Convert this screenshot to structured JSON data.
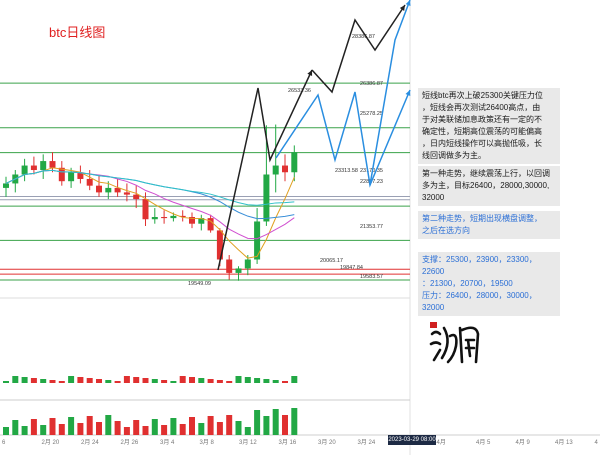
{
  "chart_title": "btc日线图",
  "notes": {
    "analysis": [
      "短线btc再次上破25300关键压力位",
      "，短线会再次测试26400高点，由",
      "于对美联储加息政策还有一定的不",
      "确定性，短期高位震荡的可能偏高",
      "，日内短线操作可以高抛低吸，长",
      "线回调做多为主。"
    ],
    "scenario1": [
      "第一种走势，继续震荡上行，以回调",
      "多为主，目标26400，28000,30000,",
      "32000"
    ],
    "scenario2": [
      "第二种走势，短期出现横盘调整，",
      "之后在选方向"
    ],
    "levels": [
      "支撑：25300，23900，23300，22600",
      "：21300，20700，19500",
      "压力：26400，28000，30000，32000"
    ]
  },
  "colors": {
    "up": "#22a845",
    "down": "#e03030",
    "ma_yellow": "#e0a020",
    "ma_blue": "#3a8fd8",
    "ma_pink": "#d04fd0",
    "ma_cyan": "#30c0c8",
    "arrow_black": "#222222",
    "arrow_blue": "#2a8ee0",
    "level_green": "#3aa24a",
    "level_red": "#e03030"
  },
  "signature_icon": "calligraphy-signature-icon",
  "cursor_date": "2023-03-29 08:00",
  "chart_data": {
    "type": "candlestick",
    "x_ticks": [
      "6",
      "2月 20",
      "2月 24",
      "2月 26",
      "3月 4",
      "3月 8",
      "3月 12",
      "3月 16",
      "3月 20",
      "3月 24",
      "",
      "4月",
      "4月 5",
      "4月 9",
      "4月 13",
      "4"
    ],
    "price_labels": [
      "28386.87",
      "26533.36",
      "26386.87",
      "25278.25",
      "23313.58",
      "23170.35",
      "22887.23",
      "21353.77",
      "20065.17",
      "19847.84",
      "19583.57",
      "19549.09"
    ],
    "horizontal_levels": [
      {
        "value": 28386.87,
        "color": "green"
      },
      {
        "value": 26386.87,
        "color": "green"
      },
      {
        "value": 25278.25,
        "color": "green"
      },
      {
        "value": 23313.58,
        "color": "gray"
      },
      {
        "value": 23170.35,
        "color": "gray"
      },
      {
        "value": 22887.23,
        "color": "green"
      },
      {
        "value": 21353.77,
        "color": "green"
      },
      {
        "value": 20065.17,
        "color": "red"
      },
      {
        "value": 19847.84,
        "color": "red"
      },
      {
        "value": 19583.57,
        "color": "green"
      }
    ],
    "candles": [
      {
        "o": 23700,
        "h": 24200,
        "l": 23300,
        "c": 23900
      },
      {
        "o": 23900,
        "h": 24500,
        "l": 23500,
        "c": 24300
      },
      {
        "o": 24300,
        "h": 25000,
        "l": 24000,
        "c": 24700
      },
      {
        "o": 24700,
        "h": 25100,
        "l": 24300,
        "c": 24500
      },
      {
        "o": 24500,
        "h": 25200,
        "l": 24100,
        "c": 24900
      },
      {
        "o": 24900,
        "h": 25300,
        "l": 24400,
        "c": 24600
      },
      {
        "o": 24600,
        "h": 24900,
        "l": 23800,
        "c": 24000
      },
      {
        "o": 24000,
        "h": 24600,
        "l": 23700,
        "c": 24400
      },
      {
        "o": 24400,
        "h": 24700,
        "l": 23900,
        "c": 24100
      },
      {
        "o": 24100,
        "h": 24500,
        "l": 23600,
        "c": 23800
      },
      {
        "o": 23800,
        "h": 24300,
        "l": 23300,
        "c": 23500
      },
      {
        "o": 23500,
        "h": 24000,
        "l": 23200,
        "c": 23700
      },
      {
        "o": 23700,
        "h": 24100,
        "l": 23300,
        "c": 23500
      },
      {
        "o": 23500,
        "h": 23900,
        "l": 23100,
        "c": 23400
      },
      {
        "o": 23400,
        "h": 23800,
        "l": 22800,
        "c": 23200
      },
      {
        "o": 23200,
        "h": 23500,
        "l": 22000,
        "c": 22300
      },
      {
        "o": 22300,
        "h": 22800,
        "l": 22100,
        "c": 22400
      },
      {
        "o": 22400,
        "h": 22700,
        "l": 22100,
        "c": 22350
      },
      {
        "o": 22350,
        "h": 22600,
        "l": 22200,
        "c": 22450
      },
      {
        "o": 22450,
        "h": 22700,
        "l": 22200,
        "c": 22400
      },
      {
        "o": 22400,
        "h": 22600,
        "l": 21900,
        "c": 22100
      },
      {
        "o": 22100,
        "h": 22500,
        "l": 21800,
        "c": 22350
      },
      {
        "o": 22350,
        "h": 22500,
        "l": 21700,
        "c": 21800
      },
      {
        "o": 21800,
        "h": 21900,
        "l": 20200,
        "c": 20500
      },
      {
        "o": 20500,
        "h": 20700,
        "l": 19600,
        "c": 19900
      },
      {
        "o": 19900,
        "h": 20200,
        "l": 19549,
        "c": 20100
      },
      {
        "o": 20100,
        "h": 20700,
        "l": 19800,
        "c": 20500
      },
      {
        "o": 20500,
        "h": 22800,
        "l": 20300,
        "c": 22200
      },
      {
        "o": 22200,
        "h": 26500,
        "l": 22000,
        "c": 24300
      },
      {
        "o": 24300,
        "h": 26533,
        "l": 23500,
        "c": 24700
      },
      {
        "o": 24700,
        "h": 25200,
        "l": 24000,
        "c": 24400
      },
      {
        "o": 24400,
        "h": 25600,
        "l": 24000,
        "c": 25300
      }
    ]
  }
}
